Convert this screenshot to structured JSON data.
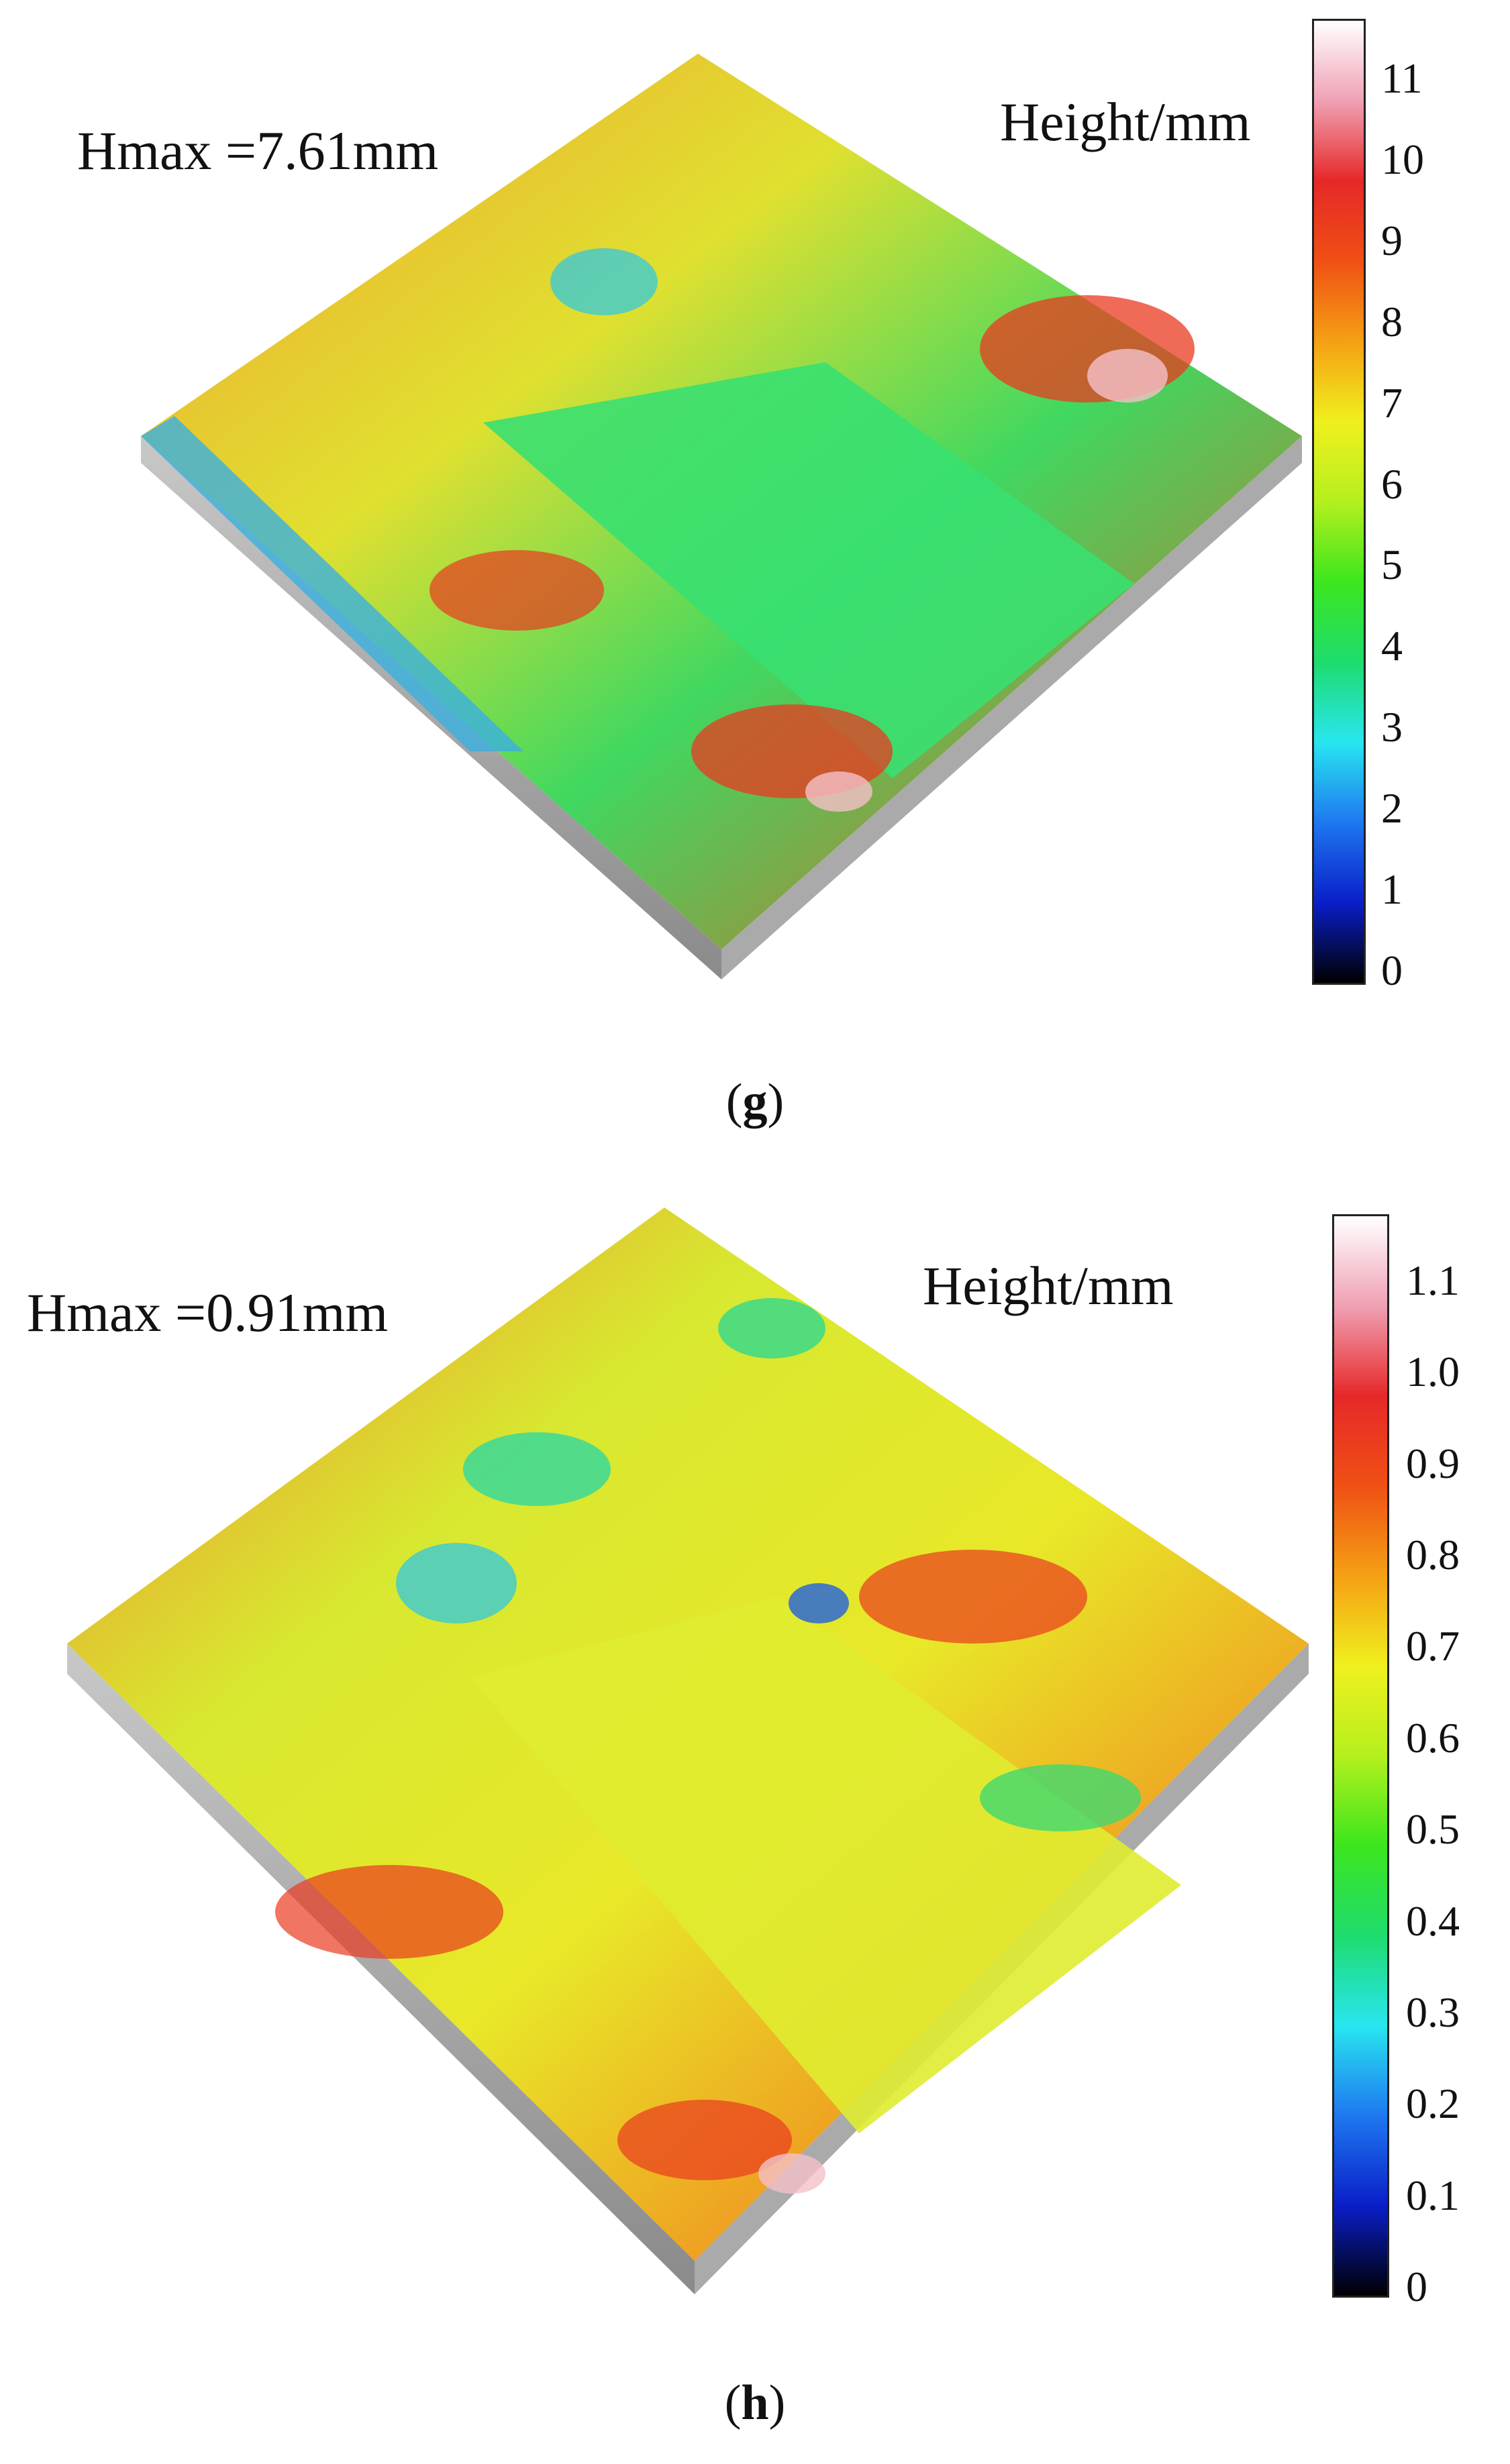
{
  "panels": [
    {
      "label": "g",
      "hmax": "Hmax =7.61mm",
      "colorbar_title": "Height/mm",
      "colorbar_ticks": [
        "11",
        "10",
        "9",
        "8",
        "7",
        "6",
        "5",
        "4",
        "3",
        "2",
        "1",
        "0"
      ]
    },
    {
      "label": "h",
      "hmax": "Hmax =0.91mm",
      "colorbar_title": "Height/mm",
      "colorbar_ticks": [
        "1.1",
        "1.0",
        "0.9",
        "0.8",
        "0.7",
        "0.6",
        "0.5",
        "0.4",
        "0.3",
        "0.2",
        "0.1",
        "0"
      ]
    }
  ],
  "colormap": [
    "#000000",
    "#0a1ec8",
    "#1e78f0",
    "#28e6f0",
    "#1edc6e",
    "#3ce61e",
    "#b4f01e",
    "#f0f01e",
    "#f5a014",
    "#f05014",
    "#e62828",
    "#f0a0b4",
    "#ffffff"
  ]
}
